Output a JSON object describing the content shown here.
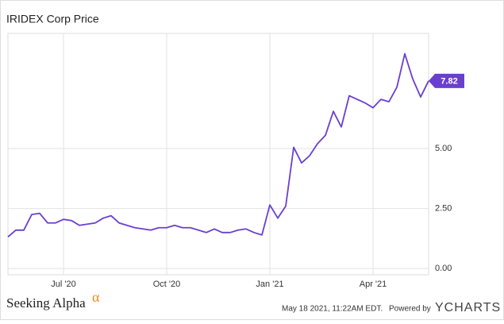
{
  "chart_data": {
    "type": "line",
    "title": "IRIDEX Corp Price",
    "categories": [
      null,
      null,
      null,
      null,
      null,
      null,
      null,
      "Jul '20",
      null,
      null,
      null,
      null,
      null,
      null,
      null,
      null,
      null,
      null,
      null,
      null,
      "Oct '20",
      null,
      null,
      null,
      null,
      null,
      null,
      null,
      null,
      null,
      null,
      null,
      null,
      "Jan '21",
      null,
      null,
      null,
      null,
      null,
      null,
      null,
      null,
      null,
      null,
      null,
      null,
      "Apr '21",
      null,
      null,
      null,
      null,
      null,
      null,
      null
    ],
    "values": [
      1.32,
      1.6,
      1.6,
      2.25,
      2.3,
      1.9,
      1.9,
      2.05,
      2.0,
      1.8,
      1.85,
      1.9,
      2.1,
      2.2,
      1.9,
      1.8,
      1.7,
      1.65,
      1.6,
      1.7,
      1.7,
      1.8,
      1.7,
      1.7,
      1.6,
      1.5,
      1.65,
      1.5,
      1.5,
      1.6,
      1.65,
      1.5,
      1.4,
      2.65,
      2.1,
      2.6,
      5.05,
      4.4,
      4.7,
      5.2,
      5.55,
      6.55,
      5.9,
      7.2,
      7.05,
      6.9,
      6.7,
      7.05,
      6.95,
      7.55,
      8.95,
      7.9,
      7.15,
      7.82
    ],
    "color": "#6a3fd0",
    "ylim": [
      -0.26,
      9.8
    ],
    "yticks": [
      {
        "value": 0,
        "label": "0.00"
      },
      {
        "value": 2.5,
        "label": "2.50"
      },
      {
        "value": 5,
        "label": "5.00"
      }
    ],
    "grid": true,
    "brand": "Seeking Alpha",
    "brand_symbol": "α",
    "timestamp": "May 18 2021, 11:22AM EDT.",
    "powered_by": "Powered by",
    "provider": "YCHARTS"
  }
}
